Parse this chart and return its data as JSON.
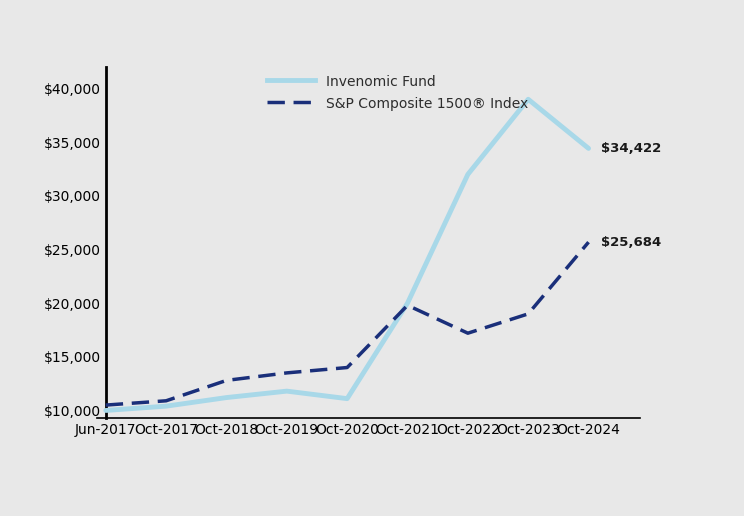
{
  "background_color": "#e8e8e8",
  "plot_bg_color": "#e8e8e8",
  "legend": [
    {
      "label": "Invenomic Fund",
      "color": "#a8d8e8",
      "linewidth": 3.5,
      "linestyle": "solid"
    },
    {
      "label": "S&P Composite 1500® Index",
      "color": "#1a2f7a",
      "linewidth": 2.5
    }
  ],
  "fund_x": [
    0,
    1,
    2,
    3,
    4,
    5,
    6,
    7,
    8
  ],
  "fund_y": [
    10000,
    10400,
    11200,
    11800,
    11100,
    20000,
    32000,
    39000,
    34422
  ],
  "index_x": [
    0,
    1,
    2,
    3,
    4,
    5,
    6,
    7,
    8
  ],
  "index_y": [
    10500,
    10900,
    12800,
    13500,
    14000,
    19800,
    17200,
    19000,
    25684
  ],
  "x_labels": [
    "Jun-2017",
    "Oct-2017",
    "Oct-2018",
    "Oct-2019",
    "Oct-2020",
    "Oct-2021",
    "Oct-2022",
    "Oct-2023",
    "Oct-2024"
  ],
  "y_ticks": [
    10000,
    15000,
    20000,
    25000,
    30000,
    35000,
    40000
  ],
  "y_labels": [
    "$10,000",
    "$15,000",
    "$20,000",
    "$25,000",
    "$30,000",
    "$35,000",
    "$40,000"
  ],
  "ylim": [
    9300,
    42000
  ],
  "xlim_left": -0.15,
  "xlim_right": 8.85,
  "end_label_fund": "$34,422",
  "end_label_index": "$25,684",
  "annotation_color": "#1a1a1a",
  "annotation_fontsize": 9.5,
  "tick_fontsize": 9,
  "tick_color": "#444444"
}
